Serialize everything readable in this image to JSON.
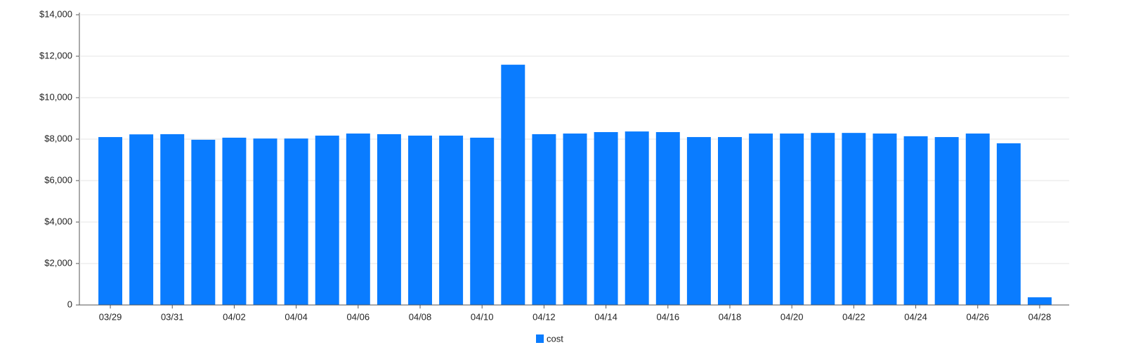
{
  "chart_data": {
    "type": "bar",
    "categories": [
      "03/29",
      null,
      "03/31",
      null,
      "04/02",
      null,
      "04/04",
      null,
      "04/06",
      null,
      "04/08",
      null,
      "04/10",
      null,
      "04/12",
      null,
      "04/14",
      null,
      "04/16",
      null,
      "04/18",
      null,
      "04/20",
      null,
      "04/22",
      null,
      "04/24",
      null,
      "04/26",
      null,
      "04/28"
    ],
    "series": [
      {
        "name": "cost",
        "color": "#0a7cff",
        "values": [
          8100,
          8230,
          8240,
          7970,
          8070,
          8030,
          8030,
          8170,
          8270,
          8240,
          8170,
          8170,
          8070,
          11590,
          8240,
          8270,
          8340,
          8370,
          8340,
          8100,
          8100,
          8270,
          8270,
          8300,
          8300,
          8270,
          8140,
          8100,
          8270,
          7800,
          370
        ]
      }
    ],
    "ylim": [
      0,
      14000
    ],
    "yticks": [
      0,
      {
        "value": 2000,
        "label": "$2,000"
      },
      {
        "value": 4000,
        "label": "$4,000"
      },
      {
        "value": 6000,
        "label": "$6,000"
      },
      {
        "value": 8000,
        "label": "$8,000"
      },
      {
        "value": 10000,
        "label": "$10,000"
      },
      {
        "value": 12000,
        "label": "$12,000"
      },
      {
        "value": 14000,
        "label": "$14,000"
      }
    ],
    "grid": true,
    "legend": "bottom"
  }
}
